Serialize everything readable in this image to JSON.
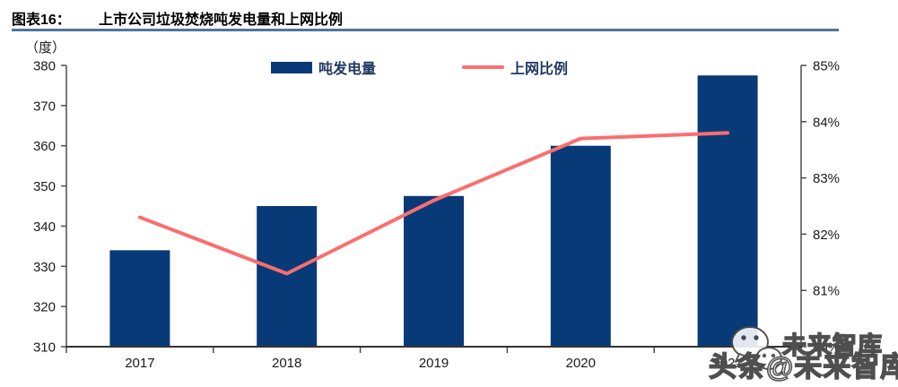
{
  "header": {
    "label": "图表16：",
    "title": "上市公司垃圾焚烧吨发电量和上网比例"
  },
  "chart_data": {
    "type": "combo-bar-line",
    "title": "上市公司垃圾焚烧吨发电量和上网比例",
    "categories": [
      "2017",
      "2018",
      "2019",
      "2020",
      "2021"
    ],
    "series": [
      {
        "name": "吨发电量",
        "type": "bar",
        "axis": "left",
        "color": "#083A78",
        "values": [
          334,
          345,
          347.5,
          360,
          377.5
        ]
      },
      {
        "name": "上网比例",
        "type": "line",
        "axis": "right",
        "color": "#FB6E6E",
        "values": [
          82.3,
          81.3,
          82.6,
          83.7,
          83.8
        ]
      }
    ],
    "left_axis": {
      "unit": "（度）",
      "min": 310,
      "max": 380,
      "tick_step": 10,
      "tick_labels": [
        "310",
        "320",
        "330",
        "340",
        "350",
        "360",
        "370",
        "380"
      ]
    },
    "right_axis": {
      "min": 80,
      "max": 85,
      "tick_step": 1,
      "tick_labels": [
        "80%",
        "81%",
        "82%",
        "83%",
        "84%",
        "85%"
      ]
    },
    "legend_position": "top",
    "grid": false
  },
  "watermark": {
    "small_text": "未来智库",
    "large_text": "头条@未来智库",
    "icon": "wechat-bubbles-icon"
  },
  "colors": {
    "bar": "#083A78",
    "line": "#FB6E6E",
    "header_rule": "#4F74A0",
    "axis": "#4D4D4D",
    "x_axis": "#333333",
    "text": "#1A1A1A",
    "legend_text": "#203864"
  }
}
